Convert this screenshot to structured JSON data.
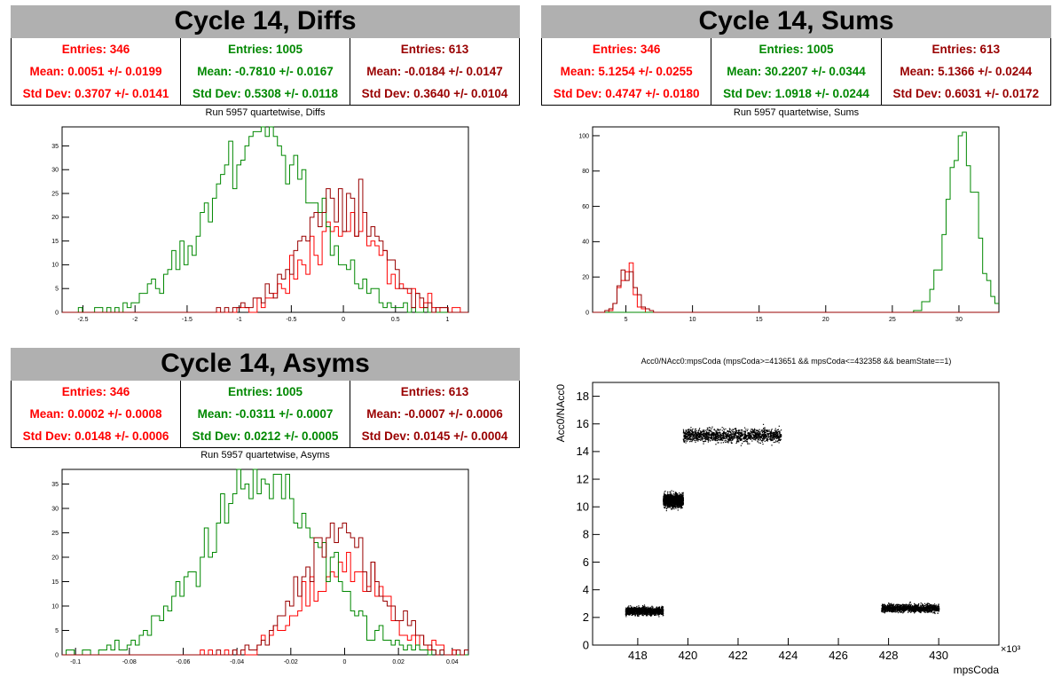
{
  "colors": {
    "red": "#ff0000",
    "green": "#008800",
    "darkred": "#990000",
    "title_bg": "#b0b0b0"
  },
  "panels": {
    "diffs": {
      "title": "Cycle 14, Diffs",
      "subtitle": "Run 5957 quartetwise, Diffs",
      "stats": [
        {
          "entries": "Entries: 346",
          "mean": "Mean: 0.0051 +/- 0.0199",
          "std": "Std Dev: 0.3707 +/- 0.0141"
        },
        {
          "entries": "Entries: 1005",
          "mean": "Mean: -0.7810 +/- 0.0167",
          "std": "Std Dev: 0.5308 +/- 0.0118"
        },
        {
          "entries": "Entries: 613",
          "mean": "Mean: -0.0184 +/- 0.0147",
          "std": "Std Dev: 0.3640 +/- 0.0104"
        }
      ]
    },
    "sums": {
      "title": "Cycle 14, Sums",
      "subtitle": "Run 5957 quartetwise, Sums",
      "stats": [
        {
          "entries": "Entries: 346",
          "mean": "Mean: 5.1254 +/- 0.0255",
          "std": "Std Dev: 0.4747 +/- 0.0180"
        },
        {
          "entries": "Entries: 1005",
          "mean": "Mean: 30.2207 +/- 0.0344",
          "std": "Std Dev: 1.0918 +/- 0.0244"
        },
        {
          "entries": "Entries: 613",
          "mean": "Mean: 5.1366 +/- 0.0244",
          "std": "Std Dev: 0.6031 +/- 0.0172"
        }
      ]
    },
    "asyms": {
      "title": "Cycle 14, Asyms",
      "subtitle": "Run 5957 quartetwise, Asyms",
      "stats": [
        {
          "entries": "Entries: 346",
          "mean": "Mean: 0.0002 +/- 0.0008",
          "std": "Std Dev: 0.0148 +/- 0.0006"
        },
        {
          "entries": "Entries: 1005",
          "mean": "Mean: -0.0311 +/- 0.0007",
          "std": "Std Dev: 0.0212 +/- 0.0005"
        },
        {
          "entries": "Entries: 613",
          "mean": "Mean: -0.0007 +/- 0.0006",
          "std": "Std Dev: 0.0145 +/- 0.0004"
        }
      ]
    },
    "scatter": {
      "title": "Acc0/NAcc0:mpsCoda (mpsCoda>=413651 && mpsCoda<=432358 && beamState==1)"
    }
  },
  "chart_data": [
    {
      "type": "histogram",
      "name": "diffs",
      "xlim": [
        -2.7,
        1.2
      ],
      "ylim": [
        0,
        39
      ],
      "xticks": [
        -2.5,
        -2,
        -1.5,
        -1,
        -0.5,
        0,
        0.5,
        1
      ],
      "yticks": [
        0,
        5,
        10,
        15,
        20,
        25,
        30,
        35
      ],
      "series": [
        {
          "color": "red",
          "mean": 0.0051,
          "std": 0.3707,
          "peak": 18
        },
        {
          "color": "green",
          "mean": -0.781,
          "std": 0.5308,
          "peak": 35
        },
        {
          "color": "darkred",
          "mean": -0.0184,
          "std": 0.364,
          "peak": 24
        }
      ]
    },
    {
      "type": "histogram",
      "name": "sums",
      "xlim": [
        2.5,
        33
      ],
      "ylim": [
        0,
        105
      ],
      "xticks": [
        5,
        10,
        15,
        20,
        25,
        30
      ],
      "yticks": [
        0,
        20,
        40,
        60,
        80,
        100
      ],
      "series": [
        {
          "color": "red",
          "mean": 5.1254,
          "std": 0.4747,
          "peak": 30
        },
        {
          "color": "green",
          "mean": 30.2207,
          "std": 1.0918,
          "peak": 100
        },
        {
          "color": "darkred",
          "mean": 5.1366,
          "std": 0.6031,
          "peak": 22
        }
      ]
    },
    {
      "type": "histogram",
      "name": "asyms",
      "xlim": [
        -0.105,
        0.046
      ],
      "ylim": [
        0,
        38
      ],
      "xticks": [
        -0.1,
        -0.08,
        -0.06,
        -0.04,
        -0.02,
        0,
        0.02,
        0.04
      ],
      "yticks": [
        0,
        5,
        10,
        15,
        20,
        25,
        30,
        35
      ],
      "series": [
        {
          "color": "red",
          "mean": 0.0002,
          "std": 0.0148,
          "peak": 18
        },
        {
          "color": "green",
          "mean": -0.0311,
          "std": 0.0212,
          "peak": 35
        },
        {
          "color": "darkred",
          "mean": -0.0007,
          "std": 0.0145,
          "peak": 24
        }
      ]
    },
    {
      "type": "scatter",
      "name": "acc0-vs-mpscoda",
      "xlabel": "mpsCoda",
      "ylabel": "Acc0/NAcc0",
      "x_exponent": "×10³",
      "xlim": [
        416.2,
        432.4
      ],
      "ylim": [
        0,
        19
      ],
      "xticks": [
        418,
        420,
        422,
        424,
        426,
        428,
        430
      ],
      "yticks": [
        0,
        2,
        4,
        6,
        8,
        10,
        12,
        14,
        16,
        18
      ],
      "clusters": [
        {
          "x": [
            417.5,
            419.0
          ],
          "y_center": 2.5,
          "y_spread": 0.35
        },
        {
          "x": [
            419.0,
            419.8
          ],
          "y_center": 10.5,
          "y_spread": 0.6
        },
        {
          "x": [
            419.8,
            423.7
          ],
          "y_center": 15.2,
          "y_spread": 0.6
        },
        {
          "x": [
            427.7,
            430.0
          ],
          "y_center": 2.7,
          "y_spread": 0.35
        }
      ]
    }
  ]
}
